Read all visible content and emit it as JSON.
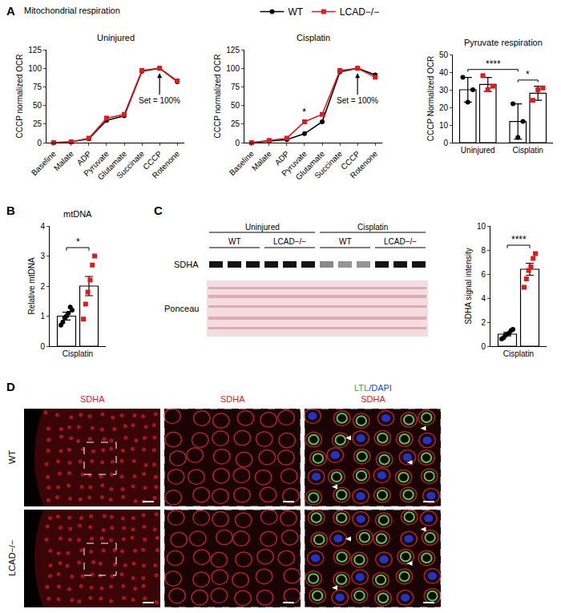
{
  "chart_data": [
    {
      "panel_label": "A",
      "figure_title": "Mitochondrial respiration",
      "type": "line",
      "title": "Uninjured",
      "y_label": "CCCP normalized OCR",
      "categories": [
        "Baseline",
        "Malate",
        "ADP",
        "Pyruvate",
        "Glutamate",
        "Succinate",
        "CCCP",
        "Rotenone"
      ],
      "series": [
        {
          "name": "WT",
          "color": "#000000",
          "marker": "circle",
          "values": [
            0,
            1,
            5,
            30,
            36,
            96,
            100,
            82
          ]
        },
        {
          "name": "LCAD−/−",
          "color": "#e31a1c",
          "marker": "square",
          "values": [
            0,
            1,
            6,
            33,
            38,
            97,
            100,
            83
          ]
        }
      ],
      "ylim": [
        0,
        125
      ],
      "yticks": [
        0,
        25,
        50,
        75,
        100,
        125
      ],
      "legend": "top",
      "annotations": [
        {
          "text": "Set = 100%",
          "category": "CCCP"
        }
      ]
    },
    {
      "type": "line",
      "title": "Cisplatin",
      "y_label": "CCCP normalized OCR",
      "categories": [
        "Baseline",
        "Malate",
        "ADP",
        "Pyruvate",
        "Glutamate",
        "Succinate",
        "CCCP",
        "Rotenone"
      ],
      "series": [
        {
          "name": "WT",
          "color": "#000000",
          "marker": "circle",
          "values": [
            0,
            2,
            4,
            12,
            28,
            95,
            100,
            91
          ]
        },
        {
          "name": "LCAD−/−",
          "color": "#e31a1c",
          "marker": "square",
          "values": [
            0,
            3,
            6,
            28,
            38,
            97,
            100,
            88
          ]
        }
      ],
      "ylim": [
        0,
        125
      ],
      "yticks": [
        0,
        25,
        50,
        75,
        100,
        125
      ],
      "annotations": [
        {
          "text": "Set = 100%",
          "category": "CCCP"
        }
      ],
      "significance": [
        {
          "text": "*",
          "category": "Pyruvate"
        }
      ]
    },
    {
      "type": "bar",
      "title": "Pyruvate respiration",
      "y_label": "CCCP Normalized OCR",
      "categories": [
        "Uninjured",
        "Cisplatin"
      ],
      "series": [
        {
          "name": "WT",
          "color": "#000000",
          "marker": "circle",
          "values": [
            30,
            12
          ],
          "errors": [
            7,
            10
          ],
          "points": [
            [
              37,
              23,
              30
            ],
            [
              22,
              3,
              12
            ]
          ]
        },
        {
          "name": "LCAD−/−",
          "color": "#e31a1c",
          "marker": "square",
          "values": [
            33,
            28
          ],
          "errors": [
            4,
            4
          ],
          "points": [
            [
              38,
              30,
              32
            ],
            [
              24,
              30,
              31
            ]
          ]
        }
      ],
      "ylim": [
        0,
        50
      ],
      "yticks": [
        0,
        10,
        20,
        30,
        40,
        50
      ],
      "significance": [
        {
          "text": "****",
          "from": [
            "Uninjured",
            "WT"
          ],
          "to": [
            "Cisplatin",
            "WT"
          ]
        },
        {
          "text": "*",
          "from": [
            "Cisplatin",
            "WT"
          ],
          "to": [
            "Cisplatin",
            "LCAD−/−"
          ]
        }
      ]
    },
    {
      "panel_label": "B",
      "type": "bar",
      "title": "mtDNA",
      "y_label": "Relative mtDNA",
      "categories": [
        "Cisplatin"
      ],
      "series": [
        {
          "name": "WT",
          "color": "#000000",
          "marker": "circle",
          "values": [
            1.0
          ],
          "errors": [
            0.13
          ],
          "points": [
            [
              0.7,
              0.8,
              0.95,
              1.0,
              1.1,
              1.3,
              1.2
            ]
          ]
        },
        {
          "name": "LCAD−/−",
          "color": "#e31a1c",
          "marker": "square",
          "values": [
            2.0
          ],
          "errors": [
            0.32
          ],
          "points": [
            [
              0.9,
              1.4,
              1.8,
              2.2,
              2.7,
              3.0
            ]
          ]
        }
      ],
      "ylim": [
        0,
        4
      ],
      "yticks": [
        0,
        1,
        2,
        3,
        4
      ],
      "significance": [
        {
          "text": "*",
          "from": [
            "Cisplatin",
            "WT"
          ],
          "to": [
            "Cisplatin",
            "LCAD−/−"
          ]
        }
      ]
    },
    {
      "type": "bar",
      "y_label": "SDHA signal intensity",
      "categories": [
        "Cisplatin"
      ],
      "series": [
        {
          "name": "WT",
          "color": "#000000",
          "marker": "circle",
          "values": [
            1.0
          ],
          "errors": [
            0.14
          ],
          "points": [
            [
              0.6,
              0.7,
              0.9,
              1.0,
              1.1,
              1.3,
              1.4
            ]
          ]
        },
        {
          "name": "LCAD−/−",
          "color": "#e31a1c",
          "marker": "square",
          "values": [
            6.4
          ],
          "errors": [
            0.5
          ],
          "points": [
            [
              4.9,
              5.6,
              6.3,
              6.6,
              7.3,
              7.7
            ]
          ]
        }
      ],
      "ylim": [
        0,
        10
      ],
      "yticks": [
        0,
        2,
        4,
        6,
        8,
        10
      ],
      "significance": [
        {
          "text": "****",
          "from": [
            "Cisplatin",
            "WT"
          ],
          "to": [
            "Cisplatin",
            "LCAD−/−"
          ]
        }
      ]
    }
  ],
  "blot": {
    "panel_label": "C",
    "conditions": [
      "Uninjured",
      "Cisplatin"
    ],
    "genotypes": [
      "WT",
      "LCAD−/−"
    ],
    "rows": [
      "SDHA",
      "Ponceau"
    ],
    "sdha_band_intensity": [
      [
        [
          1,
          1,
          1
        ],
        [
          1,
          1,
          1
        ]
      ],
      [
        [
          0.5,
          0.45,
          0.45
        ],
        [
          1,
          1,
          1
        ]
      ]
    ]
  },
  "micrographs": {
    "panel_label": "D",
    "rows": [
      "WT",
      "LCAD−/−"
    ],
    "columns": [
      {
        "lines": [
          [
            {
              "text": "SDHA",
              "color": "#e31a1c"
            }
          ]
        ]
      },
      {
        "lines": [
          [
            {
              "text": "SDHA",
              "color": "#e31a1c"
            }
          ]
        ]
      },
      {
        "lines": [
          [
            {
              "text": "LTL",
              "color": "#22b033"
            },
            {
              "text": "/",
              "color": "#2244ee"
            },
            {
              "text": "DAPI",
              "color": "#2244ee"
            }
          ],
          [
            {
              "text": "SDHA",
              "color": "#e31a1c"
            }
          ]
        ]
      }
    ]
  }
}
